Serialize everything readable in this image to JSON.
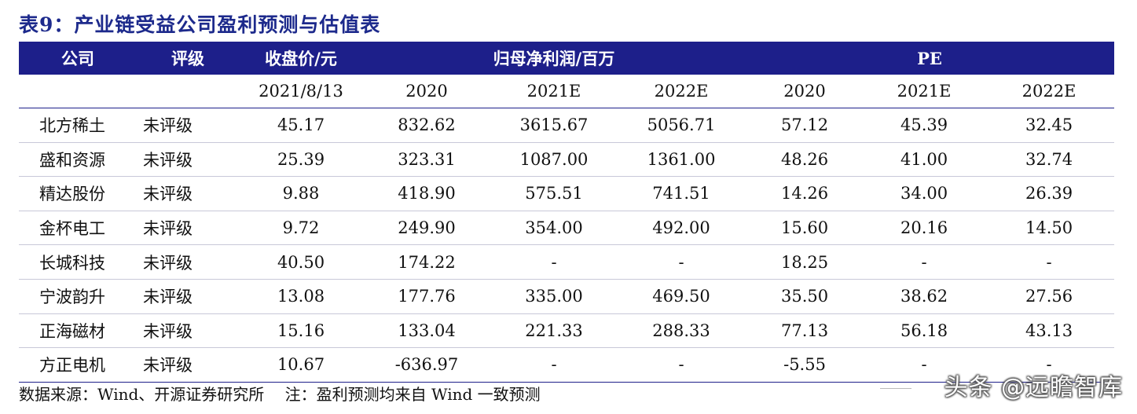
{
  "title": "表9：产业链受益公司盈利预测与估值表",
  "header": {
    "company": "公司",
    "rating": "评级",
    "close_price": "收盘价/元",
    "net_profit": "归母净利润/百万",
    "pe": "PE"
  },
  "subheader": [
    "2021/8/13",
    "2020",
    "2021E",
    "2022E",
    "2020",
    "2021E",
    "2022E"
  ],
  "rows": [
    {
      "name": "北方稀土",
      "rating": "未评级",
      "price": "45.17",
      "np2020": "832.62",
      "np2021": "3615.67",
      "np2022": "5056.71",
      "pe2020": "57.12",
      "pe2021": "45.39",
      "pe2022": "32.45"
    },
    {
      "name": "盛和资源",
      "rating": "未评级",
      "price": "25.39",
      "np2020": "323.31",
      "np2021": "1087.00",
      "np2022": "1361.00",
      "pe2020": "48.26",
      "pe2021": "41.00",
      "pe2022": "32.74"
    },
    {
      "name": "精达股份",
      "rating": "未评级",
      "price": "9.88",
      "np2020": "418.90",
      "np2021": "575.51",
      "np2022": "741.51",
      "pe2020": "14.26",
      "pe2021": "34.00",
      "pe2022": "26.39"
    },
    {
      "name": "金杯电工",
      "rating": "未评级",
      "price": "9.72",
      "np2020": "249.90",
      "np2021": "354.00",
      "np2022": "492.00",
      "pe2020": "15.60",
      "pe2021": "20.16",
      "pe2022": "14.50"
    },
    {
      "name": "长城科技",
      "rating": "未评级",
      "price": "40.50",
      "np2020": "174.22",
      "np2021": "-",
      "np2022": "-",
      "pe2020": "18.25",
      "pe2021": "-",
      "pe2022": "-"
    },
    {
      "name": "宁波韵升",
      "rating": "未评级",
      "price": "13.08",
      "np2020": "177.76",
      "np2021": "335.00",
      "np2022": "469.50",
      "pe2020": "35.50",
      "pe2021": "38.62",
      "pe2022": "27.56"
    },
    {
      "name": "正海磁材",
      "rating": "未评级",
      "price": "15.16",
      "np2020": "133.04",
      "np2021": "221.33",
      "np2022": "288.33",
      "pe2020": "77.13",
      "pe2021": "56.18",
      "pe2022": "43.13"
    },
    {
      "name": "方正电机",
      "rating": "未评级",
      "price": "10.67",
      "np2020": "-636.97",
      "np2021": "-",
      "np2022": "-",
      "pe2020": "-5.55",
      "pe2021": "-",
      "pe2022": "-"
    }
  ],
  "source": "数据来源：Wind、开源证券研究所　 注：盈利预测均来自 Wind 一致预测",
  "watermark": "头条 @远瞻智库",
  "colors": {
    "header_bg": "#1d1f8a",
    "title": "#1d2a8c"
  }
}
